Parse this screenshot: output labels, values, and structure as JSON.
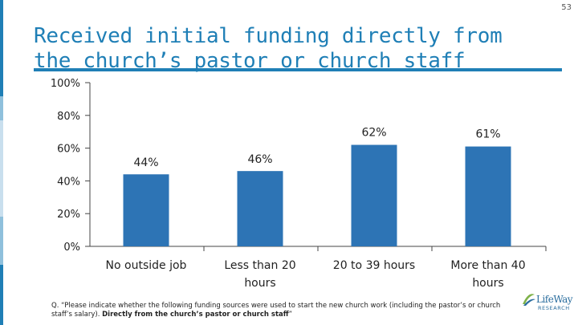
{
  "title": "Received initial funding directly from the church’s pastor or church staff",
  "page_number": "53",
  "colors": {
    "title": "#1f7fb6",
    "bar": "#2d74b5",
    "axis": "#444444",
    "strip": [
      "#1f7fb6",
      "#8fc0dc",
      "#c9dfee",
      "#8fc0dc",
      "#1f7fb6"
    ]
  },
  "footnote": {
    "text": "Q. “Please indicate whether the following funding sources were used to start the new church work (including the pastor’s or church staff’s salary).",
    "bold": "Directly from the church’s pastor or church staff",
    "end": "”"
  },
  "logo": {
    "brand": "LifeWay",
    "sub": "RESEARCH",
    "icon": "lifeway-research-logo"
  },
  "chart_data": {
    "type": "bar",
    "categories": [
      "No outside job",
      "Less than 20 hours",
      "20 to 39 hours",
      "More than 40 hours"
    ],
    "values": [
      44,
      46,
      62,
      61
    ],
    "data_labels": [
      "44%",
      "46%",
      "62%",
      "61%"
    ],
    "yticks": [
      "0%",
      "20%",
      "40%",
      "60%",
      "80%",
      "100%"
    ],
    "ylim": [
      0,
      100
    ],
    "grid": false,
    "legend": "none",
    "title": "Received initial funding directly from the church’s pastor or church staff",
    "xlabel": "",
    "ylabel": ""
  }
}
